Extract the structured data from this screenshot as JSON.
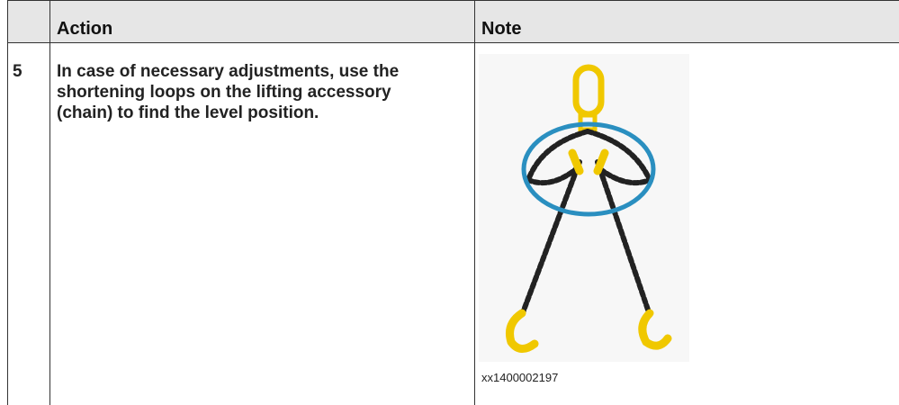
{
  "table": {
    "header": {
      "action": "Action",
      "note": "Note"
    },
    "rows": [
      {
        "step": "5",
        "action_lines": [
          "In case of necessary adjustments, use the",
          "shortening loops on the lifting accessory",
          "(chain) to find the level position."
        ],
        "figure_id": "xx1400002197"
      }
    ]
  }
}
